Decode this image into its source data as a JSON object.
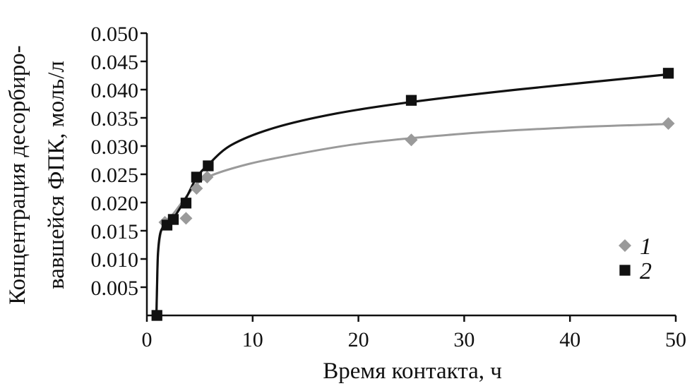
{
  "chart_data": {
    "type": "scatter",
    "xlabel": "Время контакта, ч",
    "ylabel_line1": "Концентрация десорбиро-",
    "ylabel_line2": "вавшейся ФПК, моль/л",
    "xlim": [
      0,
      50
    ],
    "ylim": [
      0,
      0.05
    ],
    "x_ticks": [
      0,
      10,
      20,
      30,
      40,
      50
    ],
    "y_ticks": [
      0.005,
      0.01,
      0.015,
      0.02,
      0.025,
      0.03,
      0.035,
      0.04,
      0.045,
      0.05
    ],
    "y_tick_labels": [
      "0.005",
      "0.010",
      "0.015",
      "0.020",
      "0.025",
      "0.030",
      "0.035",
      "0.040",
      "0.045",
      "0.050"
    ],
    "grid": false,
    "legend_position": "bottom-right",
    "series": [
      {
        "name": "1",
        "marker": "diamond",
        "color": "#9a9a9a",
        "points": [
          [
            1.7,
            0.0165
          ],
          [
            3.7,
            0.0172
          ],
          [
            4.7,
            0.0225
          ],
          [
            5.7,
            0.0245
          ],
          [
            25,
            0.0311
          ],
          [
            49.3,
            0.034
          ]
        ],
        "curve": [
          [
            0.9,
            0
          ],
          [
            0.95,
            0.004
          ],
          [
            1.05,
            0.0105
          ],
          [
            1.3,
            0.0145
          ],
          [
            1.7,
            0.0165
          ],
          [
            2.5,
            0.018
          ],
          [
            3.5,
            0.0205
          ],
          [
            4.5,
            0.0228
          ],
          [
            5.5,
            0.0243
          ],
          [
            8,
            0.026
          ],
          [
            12,
            0.0278
          ],
          [
            20,
            0.0304
          ],
          [
            30,
            0.0322
          ],
          [
            40,
            0.0333
          ],
          [
            49.3,
            0.0339
          ]
        ]
      },
      {
        "name": "2",
        "marker": "square",
        "color": "#111111",
        "points": [
          [
            0.95,
            0.0
          ],
          [
            1.9,
            0.016
          ],
          [
            2.5,
            0.017
          ],
          [
            3.7,
            0.0199
          ],
          [
            4.7,
            0.0245
          ],
          [
            5.8,
            0.0265
          ],
          [
            25,
            0.0381
          ],
          [
            49.3,
            0.0429
          ]
        ],
        "curve": [
          [
            0.9,
            0
          ],
          [
            0.95,
            0.004
          ],
          [
            1.05,
            0.011
          ],
          [
            1.3,
            0.0148
          ],
          [
            1.9,
            0.0162
          ],
          [
            2.5,
            0.0172
          ],
          [
            3.7,
            0.0208
          ],
          [
            4.7,
            0.0244
          ],
          [
            5.8,
            0.0267
          ],
          [
            8,
            0.0302
          ],
          [
            12,
            0.0332
          ],
          [
            18,
            0.0358
          ],
          [
            25,
            0.0378
          ],
          [
            35,
            0.04
          ],
          [
            49.3,
            0.0427
          ]
        ]
      }
    ]
  }
}
